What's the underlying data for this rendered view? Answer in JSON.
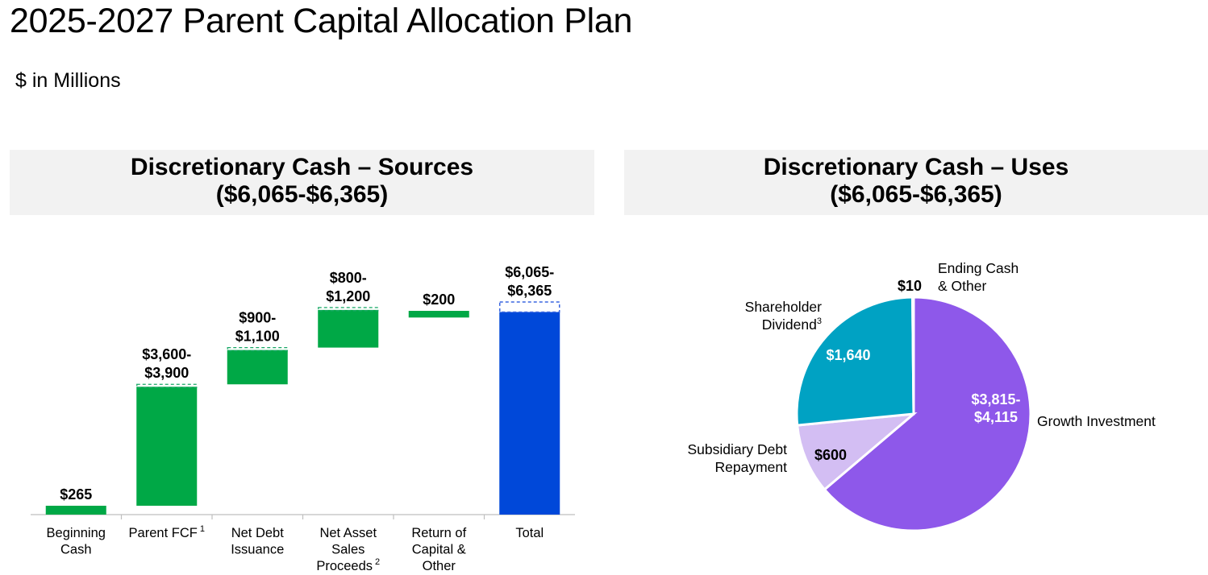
{
  "title": "2025-2027 Parent Capital Allocation Plan",
  "subtitle": "$ in Millions",
  "sources_panel": {
    "heading_line1": "Discretionary Cash – Sources",
    "heading_line2": "($6,065-$6,365)"
  },
  "uses_panel": {
    "heading_line1": "Discretionary Cash – Uses",
    "heading_line2": "($6,065-$6,365)"
  },
  "colors": {
    "green": "#00a846",
    "blue": "#0048d9",
    "teal": "#00a2c3",
    "light_purple": "#d3bef3",
    "purple": "#8e58ea",
    "white_slice": "#ffffff"
  },
  "chart_data": [
    {
      "type": "bar",
      "subtype": "waterfall",
      "y_range": [
        0,
        6365
      ],
      "grid": false,
      "categories": [
        {
          "label_lines": [
            "Beginning",
            "Cash"
          ],
          "sup": ""
        },
        {
          "label_lines": [
            "Parent FCF"
          ],
          "sup": "1"
        },
        {
          "label_lines": [
            "Net Debt",
            "Issuance"
          ],
          "sup": ""
        },
        {
          "label_lines": [
            "Net Asset",
            "Sales",
            "Proceeds"
          ],
          "sup": "2"
        },
        {
          "label_lines": [
            "Return of",
            "Capital &",
            "Other"
          ],
          "sup": ""
        },
        {
          "label_lines": [
            "Total"
          ],
          "sup": ""
        }
      ],
      "bars": [
        {
          "low": 265,
          "high": 265,
          "base": 0,
          "is_total": false,
          "value_label_lines": [
            "$265"
          ]
        },
        {
          "low": 3600,
          "high": 3900,
          "base": 0,
          "is_total": false,
          "value_label_lines": [
            "$3,600-",
            "$3,900"
          ]
        },
        {
          "low": 900,
          "high": 1100,
          "base": 3900,
          "is_total": false,
          "value_label_lines": [
            "$900-",
            "$1,100"
          ]
        },
        {
          "low": 800,
          "high": 1200,
          "base": 5000,
          "is_total": false,
          "value_label_lines": [
            "$800-",
            "$1,200"
          ]
        },
        {
          "low": 200,
          "high": 200,
          "base": 5900,
          "is_total": false,
          "value_label_lines": [
            "$200"
          ]
        },
        {
          "low": 6065,
          "high": 6365,
          "base": 0,
          "is_total": true,
          "value_label_lines": [
            "$6,065-",
            "$6,365"
          ]
        }
      ]
    },
    {
      "type": "pie",
      "slices": [
        {
          "name": "Growth Investment",
          "value": 3965,
          "value_label_lines": [
            "$3,815-",
            "$4,115"
          ],
          "color_key": "purple",
          "value_label_color": "#ffffff",
          "name_lines": [
            "Growth Investment"
          ]
        },
        {
          "name": "Subsidiary Debt Repayment",
          "value": 600,
          "value_label_lines": [
            "$600"
          ],
          "color_key": "light_purple",
          "value_label_color": "#000000",
          "name_lines": [
            "Subsidiary Debt",
            "Repayment"
          ]
        },
        {
          "name": "Shareholder Dividend",
          "value": 1640,
          "value_label_lines": [
            "$1,640"
          ],
          "color_key": "teal",
          "value_label_color": "#ffffff",
          "name_lines": [
            "Shareholder",
            "Dividend"
          ],
          "name_sup": "3"
        },
        {
          "name": "Ending Cash & Other",
          "value": 10,
          "value_label_lines": [
            "$10"
          ],
          "color_key": "white_slice",
          "value_label_color": "#000000",
          "name_lines": [
            "Ending Cash",
            "& Other"
          ]
        }
      ]
    }
  ]
}
